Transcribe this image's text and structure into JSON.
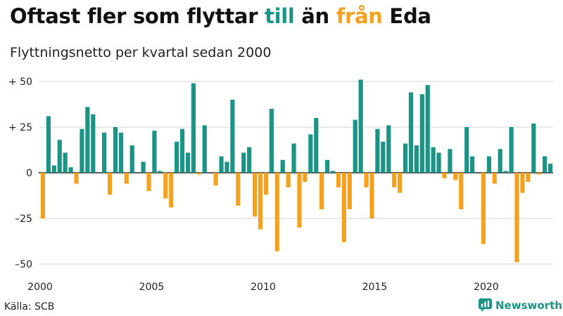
{
  "header": {
    "title_parts": [
      "Oftast fler som flyttar ",
      "till",
      " än ",
      "från",
      " Eda"
    ],
    "subtitle": "Flyttningsnetto per kvartal sedan 2000"
  },
  "footer": {
    "source": "Källa: SCB",
    "brand": "Newsworthy"
  },
  "colors": {
    "positive": "#1b9485",
    "negative": "#f4a11d",
    "grid": "#d4d4d4",
    "zero_line": "#222222"
  },
  "chart_data": {
    "type": "bar",
    "title": "Oftast fler som flyttar till än från Eda",
    "subtitle": "Flyttningsnetto per kvartal sedan 2000",
    "xlabel": "",
    "ylabel": "",
    "ylim": [
      -50,
      52
    ],
    "grid": true,
    "y_ticks": [
      {
        "value": 50,
        "label": "+ 50"
      },
      {
        "value": 25,
        "label": "+ 25"
      },
      {
        "value": 0,
        "label": "0"
      },
      {
        "value": -25,
        "label": "–25"
      },
      {
        "value": -50,
        "label": "–50"
      }
    ],
    "x_tick_labels": [
      "2000",
      "2005",
      "2010",
      "2015",
      "2020"
    ],
    "x_tick_quarter_index": [
      0,
      20,
      40,
      60,
      80
    ],
    "start": "2000 kv1",
    "series": [
      {
        "values": [
          -25,
          31,
          4,
          18,
          11,
          3,
          -6,
          24,
          36,
          32,
          0,
          22,
          -12,
          25,
          22,
          -6,
          15,
          0,
          6,
          -10,
          23,
          1,
          -14,
          -19,
          17,
          24,
          11,
          49,
          -1,
          26,
          0,
          -7,
          9,
          6,
          40,
          -18,
          11,
          14,
          -24,
          -31,
          -12,
          35,
          -43,
          7,
          -8,
          16,
          -30,
          -5,
          21,
          30,
          -20,
          7,
          1,
          -8,
          -38,
          -20,
          29,
          51,
          -8,
          -25,
          24,
          17,
          26,
          -8,
          -11,
          16,
          44,
          15,
          43,
          48,
          14,
          11,
          -3,
          13,
          -4,
          -20,
          25,
          9,
          0,
          -39,
          9,
          -6,
          13,
          1,
          25,
          -49,
          -11,
          -5,
          27,
          -1,
          9,
          5
        ]
      }
    ]
  }
}
